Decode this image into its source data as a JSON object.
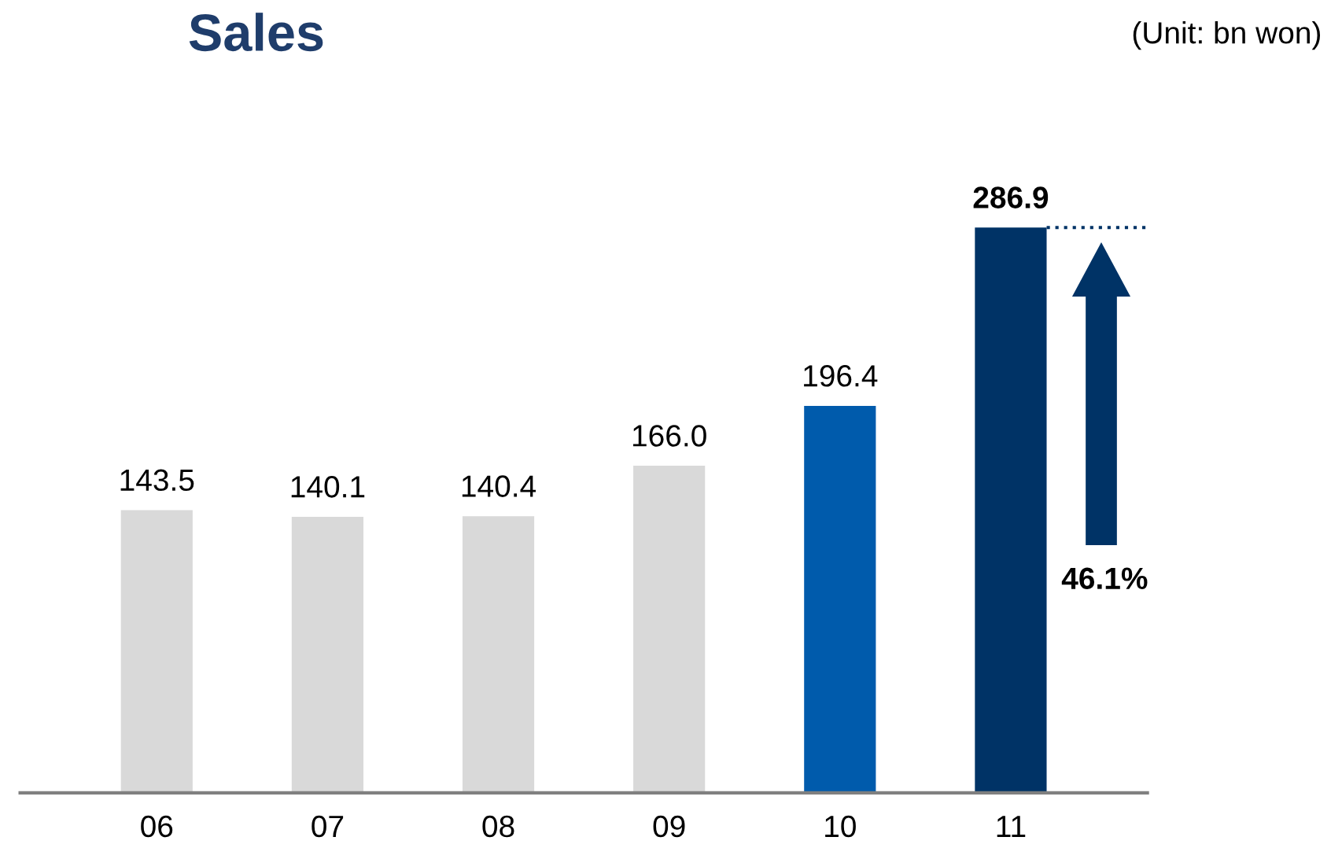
{
  "chart_data": {
    "type": "bar",
    "title": "Sales",
    "categories": [
      "06",
      "07",
      "08",
      "09",
      "10",
      "11"
    ],
    "values": [
      143.5,
      140.1,
      140.4,
      166.0,
      196.4,
      286.9
    ],
    "colors": [
      "#d9d9d9",
      "#d9d9d9",
      "#d9d9d9",
      "#d9d9d9",
      "#005bac",
      "#003366"
    ],
    "value_labels": [
      "143.5",
      "140.1",
      "140.4",
      "166.0",
      "196.4",
      "286.9"
    ],
    "ref_lines": [
      {
        "axis": "y",
        "value": 286.9,
        "color": "#003366",
        "line_style": "dotted"
      }
    ],
    "annotations": [
      "(Unit: bn won)",
      "46.1%"
    ],
    "grid": false,
    "legend": false
  }
}
